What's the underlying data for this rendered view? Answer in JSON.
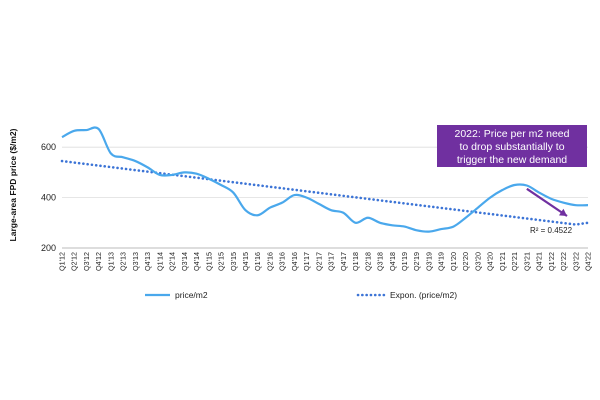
{
  "colors": {
    "series": "#4aa8ec",
    "trend": "#3c74d6",
    "callout_bg": "#7030a0",
    "callout_text": "#ffffff",
    "arrow": "#7030a0",
    "gridline": "#dddddd",
    "axis": "#bbbbbb"
  },
  "annotations": {
    "callout_lines": [
      "2022: Price per m2 need",
      "to drop substantially to",
      "trigger the new demand"
    ],
    "r2_label": "R² = 0.4522"
  },
  "chart_data": {
    "type": "line",
    "ylabel": "Large-area FPD price ($/m2)",
    "xlabel": "",
    "ylim": [
      200,
      700
    ],
    "yticks": [
      200,
      400,
      600
    ],
    "grid": "horizontal",
    "legend_position": "bottom",
    "categories": [
      "Q1'12",
      "Q2'12",
      "Q3'12",
      "Q4'12",
      "Q1'13",
      "Q2'13",
      "Q3'13",
      "Q4'13",
      "Q1'14",
      "Q2'14",
      "Q3'14",
      "Q4'14",
      "Q1'15",
      "Q2'15",
      "Q3'15",
      "Q4'15",
      "Q1'16",
      "Q2'16",
      "Q3'16",
      "Q4'16",
      "Q1'17",
      "Q2'17",
      "Q3'17",
      "Q4'17",
      "Q1'18",
      "Q2'18",
      "Q3'18",
      "Q4'18",
      "Q1'19",
      "Q2'19",
      "Q3'19",
      "Q4'19",
      "Q1'20",
      "Q2'20",
      "Q3'20",
      "Q4'20",
      "Q1'21",
      "Q2'21",
      "Q3'21",
      "Q4'21",
      "Q1'22",
      "Q2'22",
      "Q3'22",
      "Q4'22"
    ],
    "series": [
      {
        "name": "price/m2",
        "style": "solid",
        "values": [
          640,
          665,
          668,
          672,
          575,
          560,
          545,
          520,
          490,
          490,
          500,
          495,
          475,
          450,
          420,
          350,
          330,
          360,
          380,
          410,
          400,
          375,
          350,
          340,
          300,
          320,
          300,
          290,
          285,
          270,
          265,
          275,
          285,
          320,
          360,
          400,
          430,
          450,
          448,
          420,
          395,
          380,
          370,
          370
        ]
      },
      {
        "name": "Expon. (price/m2)",
        "style": "dotted",
        "values": [
          545,
          539,
          533,
          527,
          521,
          515,
          509,
          503,
          497,
          491,
          485,
          479,
          473,
          467,
          461,
          455,
          449,
          443,
          437,
          431,
          425,
          419,
          413,
          407,
          401,
          395,
          389,
          383,
          377,
          371,
          365,
          359,
          353,
          347,
          341,
          335,
          329,
          323,
          317,
          311,
          305,
          299,
          293,
          300
        ]
      }
    ]
  }
}
